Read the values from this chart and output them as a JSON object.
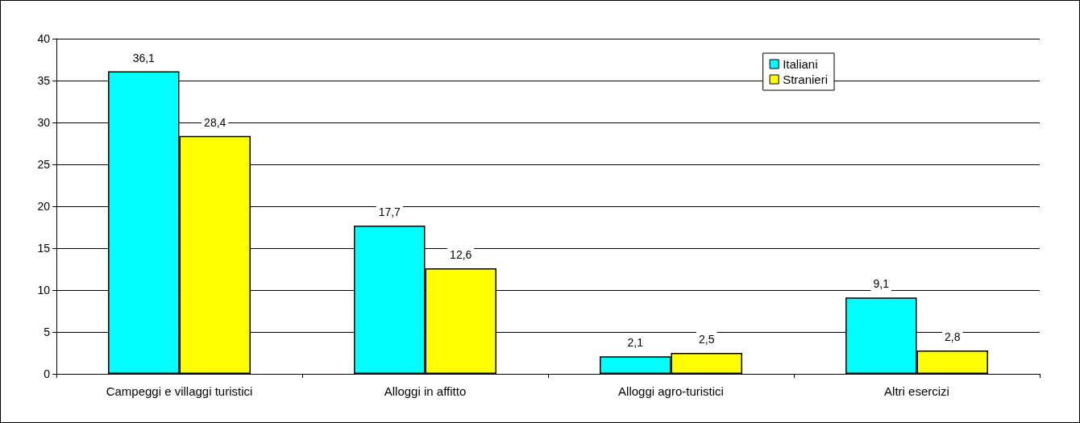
{
  "chart_data": {
    "type": "bar",
    "categories": [
      "Campeggi e villaggi turistici",
      "Alloggi in affitto",
      "Alloggi agro-turistici",
      "Altri esercizi"
    ],
    "series": [
      {
        "name": "Italiani",
        "color": "#00ffff",
        "values": [
          36.1,
          17.7,
          2.1,
          9.1
        ],
        "value_labels": [
          "36,1",
          "17,7",
          "2,1",
          "9,1"
        ]
      },
      {
        "name": "Stranieri",
        "color": "#ffff00",
        "values": [
          28.4,
          12.6,
          2.5,
          2.8
        ],
        "value_labels": [
          "28,4",
          "12,6",
          "2,5",
          "2,8"
        ]
      }
    ],
    "ylim": [
      0,
      40
    ],
    "yticks": [
      0,
      5,
      10,
      15,
      20,
      25,
      30,
      35,
      40
    ],
    "grid": "y",
    "legend": "top right"
  }
}
